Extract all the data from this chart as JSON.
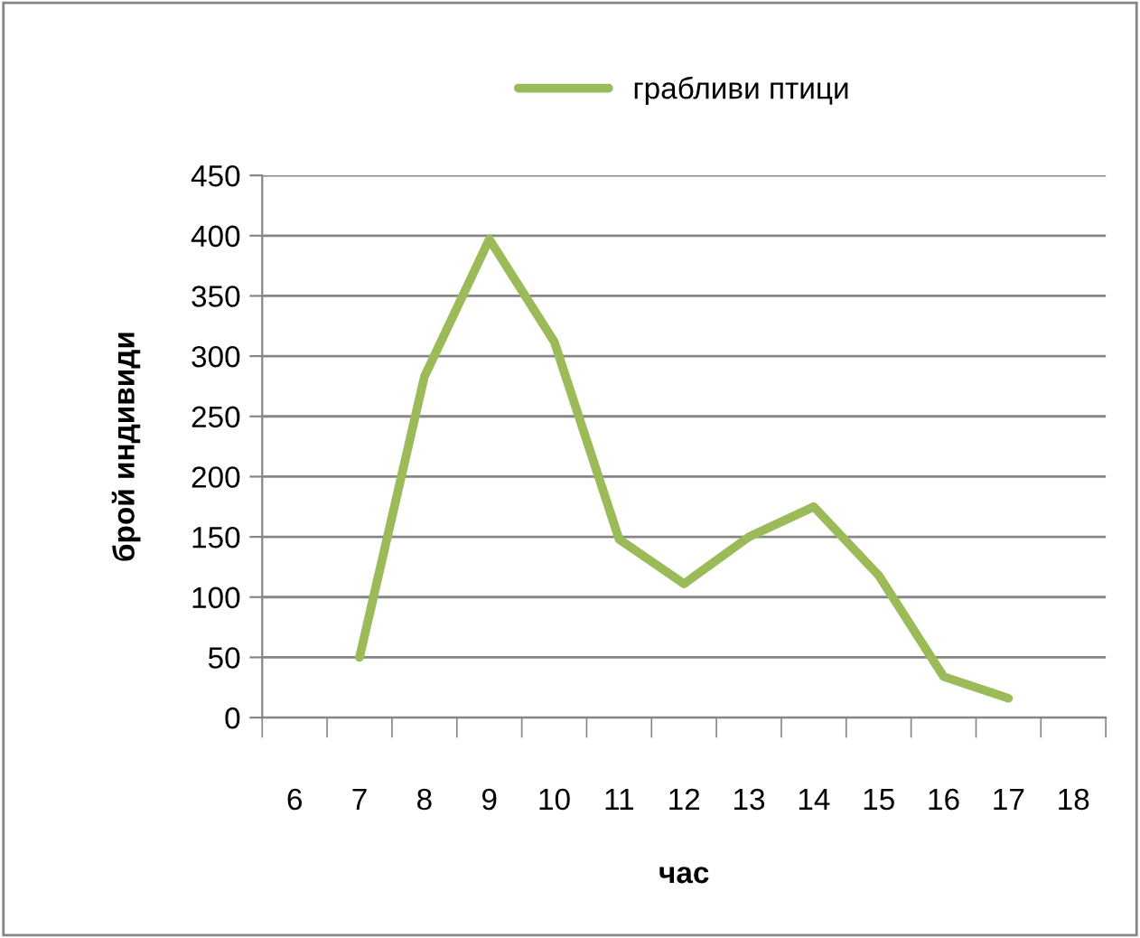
{
  "chart_data": {
    "type": "line",
    "xlabel": "час",
    "ylabel": "брой индивиди",
    "categories": [
      "6",
      "7",
      "8",
      "9",
      "10",
      "11",
      "12",
      "13",
      "14",
      "15",
      "16",
      "17",
      "18"
    ],
    "series": [
      {
        "name": "грабливи птици",
        "color": "#9bbb59",
        "values": [
          null,
          50,
          283,
          397,
          312,
          148,
          111,
          150,
          175,
          118,
          34,
          16,
          null
        ]
      }
    ],
    "ylim": [
      0,
      450
    ],
    "yticks": [
      0,
      50,
      100,
      150,
      200,
      250,
      300,
      350,
      400,
      450
    ],
    "grid": "y",
    "legend": "top",
    "marker": "none",
    "line_style": "solid"
  }
}
